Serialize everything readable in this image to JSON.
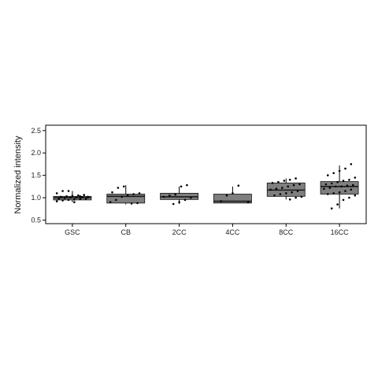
{
  "chart_data": {
    "type": "box",
    "ylabel": "Normalized intensity",
    "xlabel": "",
    "ylim": [
      0.42,
      2.62
    ],
    "yticks": [
      "0.5",
      "1.0",
      "1.5",
      "2.0",
      "2.5"
    ],
    "categories": [
      "GSC",
      "CB",
      "2CC",
      "4CC",
      "8CC",
      "16CC"
    ],
    "grid": false,
    "legend": "none",
    "colors": {
      "box_fill": "#7f7f7f",
      "median": "#1a1a1a",
      "points": "#000000",
      "frame": "#000000"
    },
    "groups": [
      {
        "name": "GSC",
        "box": {
          "min": 0.9,
          "q1": 0.95,
          "median": 1.0,
          "q3": 1.03,
          "max": 1.15
        },
        "points": [
          0.92,
          0.94,
          0.95,
          0.96,
          0.97,
          0.98,
          0.98,
          0.99,
          1.0,
          1.0,
          1.01,
          1.02,
          1.02,
          1.03,
          1.04,
          1.05,
          1.06,
          1.1,
          1.15,
          1.15,
          0.9,
          1.03
        ]
      },
      {
        "name": "CB",
        "box": {
          "min": 0.85,
          "q1": 0.88,
          "median": 1.03,
          "q3": 1.08,
          "max": 1.28
        },
        "points": [
          0.87,
          0.88,
          0.9,
          0.95,
          1.02,
          1.05,
          1.08,
          1.1,
          1.12,
          1.22,
          1.25
        ]
      },
      {
        "name": "2CC",
        "box": {
          "min": 0.86,
          "q1": 0.96,
          "median": 1.02,
          "q3": 1.1,
          "max": 1.25
        },
        "points": [
          0.86,
          0.9,
          0.95,
          1.0,
          1.02,
          1.05,
          1.07,
          1.25,
          1.28
        ]
      },
      {
        "name": "4CC",
        "box": {
          "min": 0.88,
          "q1": 0.88,
          "median": 0.92,
          "q3": 1.08,
          "max": 1.25
        },
        "points": [
          0.9,
          0.92,
          1.05,
          1.1,
          1.27
        ]
      },
      {
        "name": "8CC",
        "box": {
          "min": 0.96,
          "q1": 1.03,
          "median": 1.17,
          "q3": 1.33,
          "max": 1.43
        },
        "points": [
          0.96,
          1.0,
          1.02,
          1.05,
          1.08,
          1.1,
          1.12,
          1.15,
          1.18,
          1.2,
          1.22,
          1.25,
          1.28,
          1.3,
          1.33,
          1.35,
          1.38,
          1.4,
          1.43
        ]
      },
      {
        "name": "16CC",
        "box": {
          "min": 0.76,
          "q1": 1.08,
          "median": 1.25,
          "q3": 1.36,
          "max": 1.72
        },
        "points": [
          0.76,
          0.85,
          0.95,
          1.0,
          1.05,
          1.08,
          1.1,
          1.12,
          1.15,
          1.18,
          1.2,
          1.22,
          1.25,
          1.25,
          1.27,
          1.28,
          1.3,
          1.32,
          1.35,
          1.38,
          1.4,
          1.45,
          1.5,
          1.55,
          1.6,
          1.65,
          1.75
        ]
      }
    ]
  }
}
